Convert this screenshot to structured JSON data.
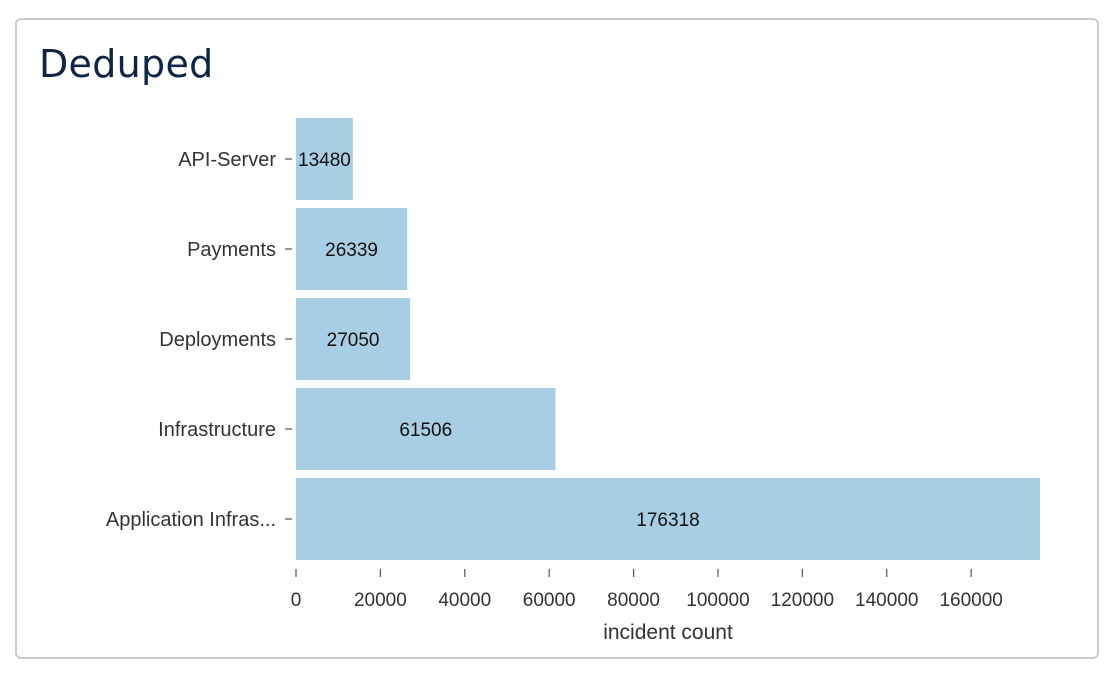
{
  "panel": {
    "title": "Deduped"
  },
  "chart_data": {
    "type": "bar",
    "orientation": "horizontal",
    "title": "Deduped",
    "xlabel": "incident count",
    "ylabel": "",
    "categories": [
      "API-Server",
      "Payments",
      "Deployments",
      "Infrastructure",
      "Application Infras..."
    ],
    "values": [
      13480,
      26339,
      27050,
      61506,
      176318
    ],
    "xlim": [
      0,
      176318
    ],
    "xticks": [
      0,
      20000,
      40000,
      60000,
      80000,
      100000,
      120000,
      140000,
      160000
    ],
    "grid": false,
    "bar_color": "#a7cee2"
  }
}
